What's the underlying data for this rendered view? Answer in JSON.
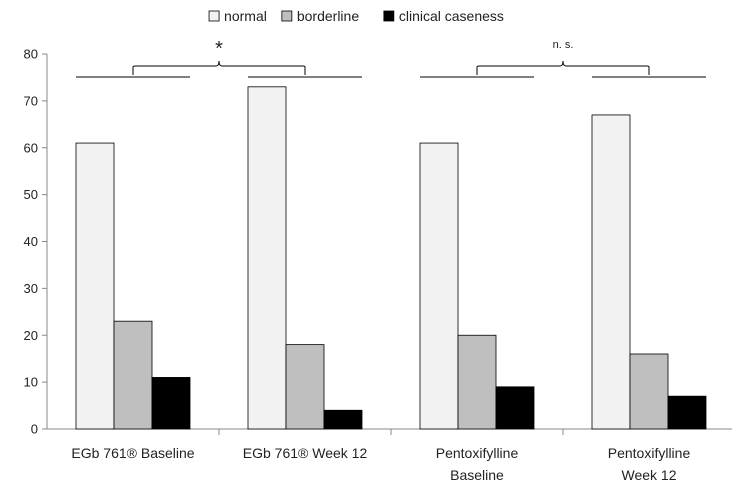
{
  "chart_data": {
    "type": "bar",
    "categories": [
      [
        "EGb 761® Baseline"
      ],
      [
        "EGb 761® Week 12"
      ],
      [
        "Pentoxifylline",
        "Baseline"
      ],
      [
        "Pentoxifylline",
        "Week 12"
      ]
    ],
    "series": [
      {
        "name": "normal",
        "color": "#f2f2f2",
        "values": [
          61,
          73,
          61,
          67
        ]
      },
      {
        "name": "borderline",
        "color": "#bfbfbf",
        "values": [
          23,
          18,
          20,
          16
        ]
      },
      {
        "name": "clinical caseness",
        "color": "#000000",
        "values": [
          11,
          4,
          9,
          7
        ]
      }
    ],
    "ylim": [
      0,
      80
    ],
    "yticks": [
      0,
      10,
      20,
      30,
      40,
      50,
      60,
      70,
      80
    ],
    "legend_position": "top-center",
    "grid": false,
    "annotations": [
      {
        "text": "*",
        "groups": [
          0,
          1
        ]
      },
      {
        "text": "n. s.",
        "groups": [
          2,
          3
        ]
      }
    ]
  }
}
